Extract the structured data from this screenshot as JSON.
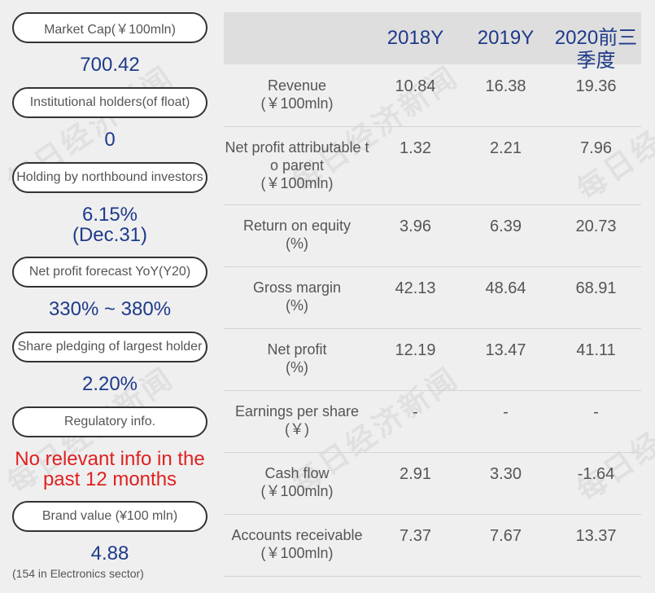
{
  "watermark": "每日经济新闻",
  "left_panel": [
    {
      "label": "Market Cap(￥100mln)",
      "value": "700.42"
    },
    {
      "label": "Institutional holders(of float)",
      "value": "0"
    },
    {
      "label": "Holding by northbound investors",
      "value": "6.15%",
      "value2": "(Dec.31)"
    },
    {
      "label": "Net profit forecast YoY(Y20)",
      "value": "330% ~ 380%"
    },
    {
      "label": "Share pledging of largest holder",
      "value": "2.20%"
    },
    {
      "label": "Regulatory info.",
      "value": "No relevant info in the",
      "value2": "past 12 months"
    },
    {
      "label": "Brand value (¥100 mln)",
      "value": "4.88"
    }
  ],
  "brand_note": "(154 in Electronics sector)",
  "table": {
    "columns": [
      "2018Y",
      "2019Y",
      "2020前三",
      "季度"
    ],
    "rows": [
      {
        "label": [
          "Revenue",
          "(￥100mln)"
        ],
        "values": [
          "10.84",
          "16.38",
          "19.36"
        ]
      },
      {
        "label": [
          "Net profit attributable t",
          "o parent",
          "(￥100mln)"
        ],
        "values": [
          "1.32",
          "2.21",
          "7.96"
        ]
      },
      {
        "label": [
          "Return on equity",
          "(%)"
        ],
        "values": [
          "3.96",
          "6.39",
          "20.73"
        ]
      },
      {
        "label": [
          "Gross margin",
          "(%)"
        ],
        "values": [
          "42.13",
          "48.64",
          "68.91"
        ]
      },
      {
        "label": [
          "Net profit",
          "(%)"
        ],
        "values": [
          "12.19",
          "13.47",
          "41.11"
        ]
      },
      {
        "label": [
          "Earnings per share",
          "(￥)"
        ],
        "values": [
          "-",
          "-",
          "-"
        ]
      },
      {
        "label": [
          "Cash flow",
          "(￥100mln)"
        ],
        "values": [
          "2.91",
          "3.30",
          "-1.64"
        ]
      },
      {
        "label": [
          "Accounts receivable",
          "(￥100mln)"
        ],
        "values": [
          "7.37",
          "7.67",
          "13.37"
        ]
      }
    ]
  }
}
